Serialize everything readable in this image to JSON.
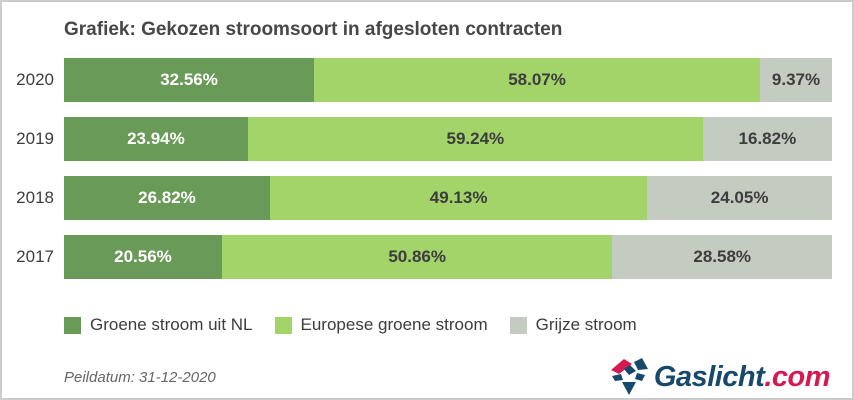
{
  "title": "Grafiek: Gekozen stroomsoort in afgesloten contracten",
  "chart_data": {
    "type": "bar",
    "stacked": true,
    "orientation": "horizontal",
    "categories": [
      "2020",
      "2019",
      "2018",
      "2017"
    ],
    "series": [
      {
        "name": "Groene stroom uit NL",
        "color": "#6a9a57",
        "label_color": "#ffffff",
        "values": [
          32.56,
          23.94,
          26.82,
          20.56
        ]
      },
      {
        "name": "Europese groene stroom",
        "color": "#a3d469",
        "label_color": "#3d3d3d",
        "values": [
          58.07,
          59.24,
          49.13,
          50.86
        ]
      },
      {
        "name": "Grijze stroom",
        "color": "#c4ccc1",
        "label_color": "#3d3d3d",
        "values": [
          9.37,
          16.82,
          24.05,
          28.58
        ]
      }
    ],
    "value_suffix": "%",
    "xlim": [
      0,
      100
    ],
    "grid": false,
    "legend_position": "bottom"
  },
  "footer": {
    "peildatum": "Peildatum: 31-12-2020",
    "logo": {
      "name": "Gaslicht.com",
      "text_main": "Gaslicht",
      "text_suffix": ".com",
      "color_main": "#17496d",
      "color_suffix": "#d41a51"
    }
  }
}
